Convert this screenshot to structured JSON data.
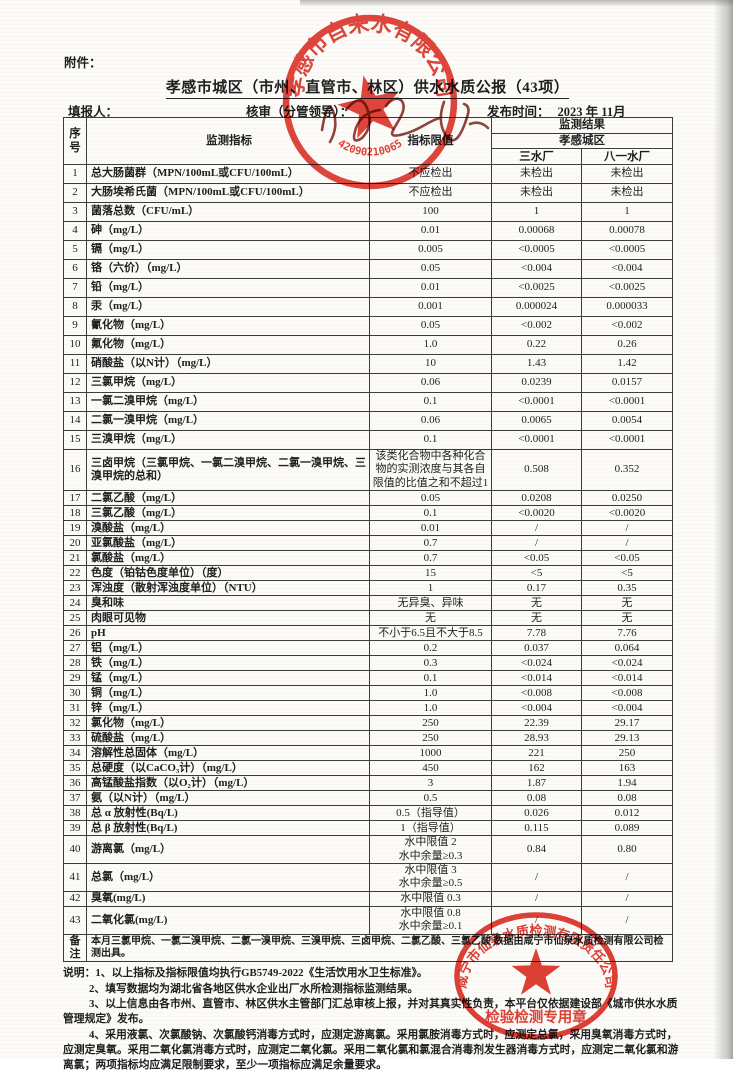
{
  "page": {
    "attachment_label": "附件：",
    "title": "孝感市城区（市州、直管市、林区）供水水质公报（43项）",
    "filler_label": "填报人：",
    "reviewer_label": "核审（分管领导）：",
    "publish_label": "发布时间：",
    "publish_date": "2023 年 11月"
  },
  "table": {
    "headers": {
      "no": "序号",
      "indicator": "监测指标",
      "limit": "指标限值",
      "result_group": "监测结果",
      "area": "孝感城区",
      "plant1": "三水厂",
      "plant2": "八一水厂"
    },
    "rows": [
      {
        "no": 1,
        "indicator": "总大肠菌群（MPN/100mL或CFU/100mL）",
        "limit": "不应检出",
        "plant1": "未检出",
        "plant2": "未检出"
      },
      {
        "no": 2,
        "indicator": "大肠埃希氏菌（MPN/100mL或CFU/100mL）",
        "limit": "不应检出",
        "plant1": "未检出",
        "plant2": "未检出"
      },
      {
        "no": 3,
        "indicator": "菌落总数（CFU/mL）",
        "limit": "100",
        "plant1": "1",
        "plant2": "1"
      },
      {
        "no": 4,
        "indicator": "砷（mg/L）",
        "limit": "0.01",
        "plant1": "0.00068",
        "plant2": "0.00078"
      },
      {
        "no": 5,
        "indicator": "镉（mg/L）",
        "limit": "0.005",
        "plant1": "<0.0005",
        "plant2": "<0.0005"
      },
      {
        "no": 6,
        "indicator": "铬（六价）（mg/L）",
        "limit": "0.05",
        "plant1": "<0.004",
        "plant2": "<0.004"
      },
      {
        "no": 7,
        "indicator": "铅（mg/L）",
        "limit": "0.01",
        "plant1": "<0.0025",
        "plant2": "<0.0025"
      },
      {
        "no": 8,
        "indicator": "汞（mg/L）",
        "limit": "0.001",
        "plant1": "0.000024",
        "plant2": "0.000033"
      },
      {
        "no": 9,
        "indicator": "氰化物（mg/L）",
        "limit": "0.05",
        "plant1": "<0.002",
        "plant2": "<0.002"
      },
      {
        "no": 10,
        "indicator": "氟化物（mg/L）",
        "limit": "1.0",
        "plant1": "0.22",
        "plant2": "0.26"
      },
      {
        "no": 11,
        "indicator": "硝酸盐（以N计）（mg/L）",
        "limit": "10",
        "plant1": "1.43",
        "plant2": "1.42"
      },
      {
        "no": 12,
        "indicator": "三氯甲烷（mg/L）",
        "limit": "0.06",
        "plant1": "0.0239",
        "plant2": "0.0157"
      },
      {
        "no": 13,
        "indicator": "一氯二溴甲烷（mg/L）",
        "limit": "0.1",
        "plant1": "<0.0001",
        "plant2": "<0.0001"
      },
      {
        "no": 14,
        "indicator": "二氯一溴甲烷（mg/L）",
        "limit": "0.06",
        "plant1": "0.0065",
        "plant2": "0.0054"
      },
      {
        "no": 15,
        "indicator": "三溴甲烷（mg/L）",
        "limit": "0.1",
        "plant1": "<0.0001",
        "plant2": "<0.0001"
      },
      {
        "no": 16,
        "indicator": "三卤甲烷（三氯甲烷、一氯二溴甲烷、二氯一溴甲烷、三溴甲烷的总和）",
        "limit": "该类化合物中各种化合物的实测浓度与其各自限值的比值之和不超过1",
        "plant1": "0.508",
        "plant2": "0.352"
      },
      {
        "no": 17,
        "indicator": "二氯乙酸（mg/L）",
        "limit": "0.05",
        "plant1": "0.0208",
        "plant2": "0.0250"
      },
      {
        "no": 18,
        "indicator": "三氯乙酸（mg/L）",
        "limit": "0.1",
        "plant1": "<0.0020",
        "plant2": "<0.0020"
      },
      {
        "no": 19,
        "indicator": "溴酸盐（mg/L）",
        "limit": "0.01",
        "plant1": "/",
        "plant2": "/"
      },
      {
        "no": 20,
        "indicator": "亚氯酸盐（mg/L）",
        "limit": "0.7",
        "plant1": "/",
        "plant2": "/"
      },
      {
        "no": 21,
        "indicator": "氯酸盐（mg/L）",
        "limit": "0.7",
        "plant1": "<0.05",
        "plant2": "<0.05"
      },
      {
        "no": 22,
        "indicator": "色度（铂钴色度单位）（度）",
        "limit": "15",
        "plant1": "<5",
        "plant2": "<5"
      },
      {
        "no": 23,
        "indicator": "浑浊度（散射浑浊度单位）（NTU）",
        "limit": "1",
        "plant1": "0.17",
        "plant2": "0.35"
      },
      {
        "no": 24,
        "indicator": "臭和味",
        "limit": "无异臭、异味",
        "plant1": "无",
        "plant2": "无"
      },
      {
        "no": 25,
        "indicator": "肉眼可见物",
        "limit": "无",
        "plant1": "无",
        "plant2": "无"
      },
      {
        "no": 26,
        "indicator": "pH",
        "limit": "不小于6.5且不大于8.5",
        "plant1": "7.78",
        "plant2": "7.76"
      },
      {
        "no": 27,
        "indicator": "铝（mg/L）",
        "limit": "0.2",
        "plant1": "0.037",
        "plant2": "0.064"
      },
      {
        "no": 28,
        "indicator": "铁（mg/L）",
        "limit": "0.3",
        "plant1": "<0.024",
        "plant2": "<0.024"
      },
      {
        "no": 29,
        "indicator": "锰（mg/L）",
        "limit": "0.1",
        "plant1": "<0.014",
        "plant2": "<0.014"
      },
      {
        "no": 30,
        "indicator": "铜（mg/L）",
        "limit": "1.0",
        "plant1": "<0.008",
        "plant2": "<0.008"
      },
      {
        "no": 31,
        "indicator": "锌（mg/L）",
        "limit": "1.0",
        "plant1": "<0.004",
        "plant2": "<0.004"
      },
      {
        "no": 32,
        "indicator": "氯化物（mg/L）",
        "limit": "250",
        "plant1": "22.39",
        "plant2": "29.17"
      },
      {
        "no": 33,
        "indicator": "硫酸盐（mg/L）",
        "limit": "250",
        "plant1": "28.93",
        "plant2": "29.13"
      },
      {
        "no": 34,
        "indicator": "溶解性总固体（mg/L）",
        "limit": "1000",
        "plant1": "221",
        "plant2": "250"
      },
      {
        "no": 35,
        "indicator": "总硬度（以CaCO₃计）（mg/L）",
        "limit": "450",
        "plant1": "162",
        "plant2": "163"
      },
      {
        "no": 36,
        "indicator": "高锰酸盐指数（以O₂计）（mg/L）",
        "limit": "3",
        "plant1": "1.87",
        "plant2": "1.94"
      },
      {
        "no": 37,
        "indicator": "氨（以N计）（mg/L）",
        "limit": "0.5",
        "plant1": "0.08",
        "plant2": "0.08"
      },
      {
        "no": 38,
        "indicator": "总 α 放射性(Bq/L)",
        "limit": "0.5（指导值）",
        "plant1": "0.026",
        "plant2": "0.012"
      },
      {
        "no": 39,
        "indicator": "总 β 放射性(Bq/L)",
        "limit": "1（指导值）",
        "plant1": "0.115",
        "plant2": "0.089"
      },
      {
        "no": 40,
        "indicator": "游离氯（mg/L）",
        "limit": "水中限值 2\n水中余量≥0.3",
        "plant1": "0.84",
        "plant2": "0.80"
      },
      {
        "no": 41,
        "indicator": "总氯（mg/L）",
        "limit": "水中限值 3\n水中余量≥0.5",
        "plant1": "/",
        "plant2": "/"
      },
      {
        "no": 42,
        "indicator": "臭氧(mg/L)",
        "limit": "水中限值 0.3",
        "plant1": "/",
        "plant2": "/"
      },
      {
        "no": 43,
        "indicator": "二氧化氯(mg/L)",
        "limit": "水中限值 0.8\n水中余量≥0.1",
        "plant1": "/",
        "plant2": "/"
      }
    ],
    "remark_label": "备注",
    "remark_text": "本月三氯甲烷、一氯二溴甲烷、二氯一溴甲烷、三溴甲烷、三卤甲烷、二氯乙酸、三氯乙酸 数据由咸宁市仙泉水质检测有限公司检测出具。"
  },
  "notes": {
    "label": "说明：",
    "items": [
      "1、以上指标及指标限值均执行GB5749-2022《生活饮用水卫生标准》。",
      "2、填写数据均为湖北省各地区供水企业出厂水所检测指标监测结果。",
      "3、以上信息由各市州、直管市、林区供水主管部门汇总审核上报，并对其真实性负责，本平台仅依据建设部《城市供水水质管理规定》发布。",
      "4、采用液氯、次氯酸钠、次氯酸钙消毒方式时，应测定游离氯。采用氯胺消毒方式时，应测定总氯，采用臭氧消毒方式时，应测定臭氧。采用二氧化氯消毒方式时，应测定二氧化氯。采用二氧化氯和氯混合消毒剂发生器消毒方式时，应测定二氧化氯和游离氯；两项指标均应满足限制要求，至少一项指标应满足余量要求。"
    ]
  },
  "stamps": {
    "top": {
      "ring_text": "孝感市自来水有限公司",
      "serial": "42090210065",
      "color": "#dd2b1f"
    },
    "bottom": {
      "ring_text": "咸宁市仙泉水质检测有限责任公司",
      "bottom_text": "检验检测专用章",
      "color": "#dd2b1f"
    }
  }
}
